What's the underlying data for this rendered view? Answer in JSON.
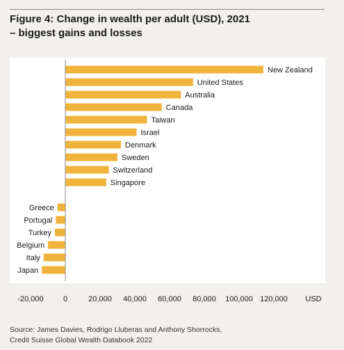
{
  "title_line1": "Figure 4: Change in wealth per adult (USD), 2021",
  "title_line2": "– biggest gains and losses",
  "source_line1": "Source: James Davies, Rodrigo Lluberas and Anthony Shorrocks,",
  "source_line2": "Credit Suisse Global Wealth Databook 2022",
  "chart_data": {
    "type": "bar",
    "orientation": "horizontal",
    "categories": [
      "New Zealand",
      "United States",
      "Australia",
      "Canada",
      "Taiwan",
      "Israel",
      "Denmark",
      "Sweden",
      "Switzerland",
      "Singapore",
      "Greece",
      "Portugal",
      "Turkey",
      "Belgium",
      "Italy",
      "Japan"
    ],
    "values": [
      114000,
      73500,
      66500,
      55500,
      47000,
      41000,
      32000,
      30000,
      25000,
      23500,
      -4500,
      -5500,
      -6000,
      -10000,
      -12500,
      -13500
    ],
    "xlabel": "USD",
    "xlim": [
      -20000,
      140000
    ],
    "xticks": [
      -20000,
      0,
      20000,
      40000,
      60000,
      80000,
      100000,
      120000
    ],
    "xtick_labels": [
      "-20,000",
      "0",
      "20,000",
      "40,000",
      "60,000",
      "80,000",
      "100,000",
      "120,000"
    ],
    "bar_color": "#f0b43c",
    "background": "#f2f0ed",
    "grid": false,
    "legend": "none"
  }
}
